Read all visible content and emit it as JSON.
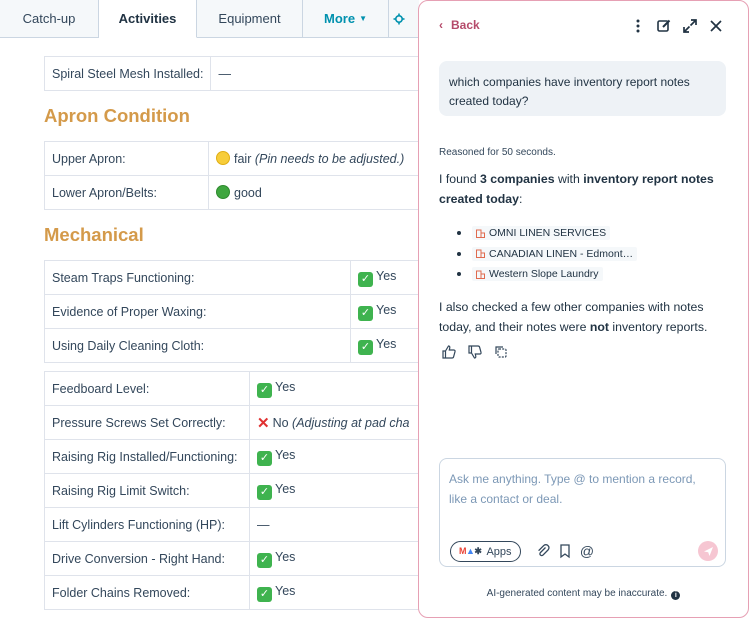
{
  "tabs": [
    {
      "label": "Catch-up"
    },
    {
      "label": "Activities"
    },
    {
      "label": "Equipment"
    },
    {
      "label": "More"
    }
  ],
  "spiral_row": {
    "label": "Spiral Steel Mesh Installed:",
    "value": "—"
  },
  "apron": {
    "title": "Apron Condition",
    "rows": [
      {
        "label": "Upper Apron:",
        "value": "fair",
        "note": "(Pin needs to be adjusted.)"
      },
      {
        "label": "Lower Apron/Belts:",
        "value": "good"
      }
    ]
  },
  "mechanical": {
    "title": "Mechanical",
    "rows1": [
      {
        "label": "Steam Traps Functioning:",
        "value": "Yes"
      },
      {
        "label": "Evidence of Proper Waxing:",
        "value": "Yes"
      },
      {
        "label": "Using Daily Cleaning Cloth:",
        "value": "Yes"
      }
    ],
    "rows2": [
      {
        "label": "Feedboard Level:",
        "value": "Yes"
      },
      {
        "label": "Pressure Screws Set Correctly:",
        "value": "No",
        "note": "(Adjusting at pad cha"
      },
      {
        "label": "Raising Rig Installed/Functioning:",
        "value": "Yes"
      },
      {
        "label": "Raising Rig Limit Switch:",
        "value": "Yes"
      },
      {
        "label": "Lift Cylinders Functioning (HP):",
        "value": "—"
      },
      {
        "label": "Drive Conversion - Right Hand:",
        "value": "Yes"
      },
      {
        "label": "Folder Chains Removed:",
        "value": "Yes"
      }
    ]
  },
  "assistant": {
    "back_label": "Back",
    "user_question": "which companies have inventory report notes created today?",
    "reasoned": "Reasoned for 50 seconds.",
    "answer_prefix": "I found ",
    "answer_count": "3 companies",
    "answer_mid": " with ",
    "answer_bold": "inventory report notes created today",
    "answer_suffix": ":",
    "companies": [
      {
        "name": "OMNI LINEN SERVICES"
      },
      {
        "name": "CANADIAN LINEN - Edmont…"
      },
      {
        "name": "Western Slope Laundry"
      }
    ],
    "followup_prefix": "I also checked a few other companies with notes today, and their notes were ",
    "followup_bold": "not",
    "followup_suffix": " inventory reports.",
    "composer_placeholder": "Ask me anything. Type @ to mention a record, like a contact or deal.",
    "apps_label": "Apps",
    "disclaimer": "AI-generated content may be inaccurate."
  },
  "colors": {
    "section_heading": "#d49a4a",
    "panel_border": "#e6a0b4",
    "back_link": "#b54a6a",
    "send_button": "#f6c6d2",
    "company_icon": "#e06a4e"
  }
}
